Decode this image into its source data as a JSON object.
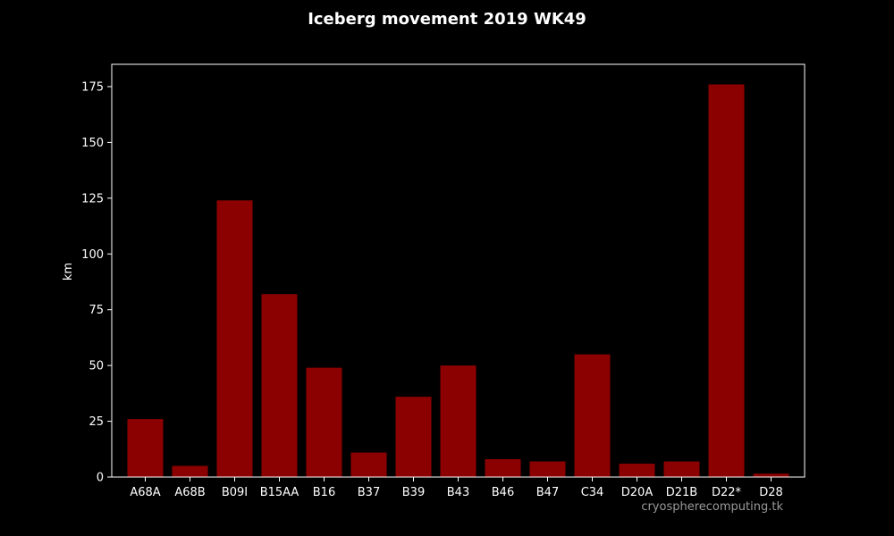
{
  "chart_data": {
    "type": "bar",
    "title": "Iceberg movement 2019 WK49",
    "xlabel": "",
    "ylabel": "km",
    "categories": [
      "A68A",
      "A68B",
      "B09I",
      "B15AA",
      "B16",
      "B37",
      "B39",
      "B43",
      "B46",
      "B47",
      "C34",
      "D20A",
      "D21B",
      "D22*",
      "D28"
    ],
    "values": [
      26,
      5,
      124,
      82,
      49,
      11,
      36,
      50,
      8,
      7,
      55,
      6,
      7,
      176,
      1.5
    ],
    "ylim": [
      0,
      185
    ],
    "yticks": [
      0,
      25,
      50,
      75,
      100,
      125,
      150,
      175
    ],
    "grid": false,
    "legend": "none",
    "watermark": "cryospherecomputing.tk",
    "colors": {
      "background": "#000000",
      "bar": "#8b0000",
      "text": "#ffffff",
      "axes": "#ffffff",
      "watermark": "#9a9a9a"
    }
  }
}
